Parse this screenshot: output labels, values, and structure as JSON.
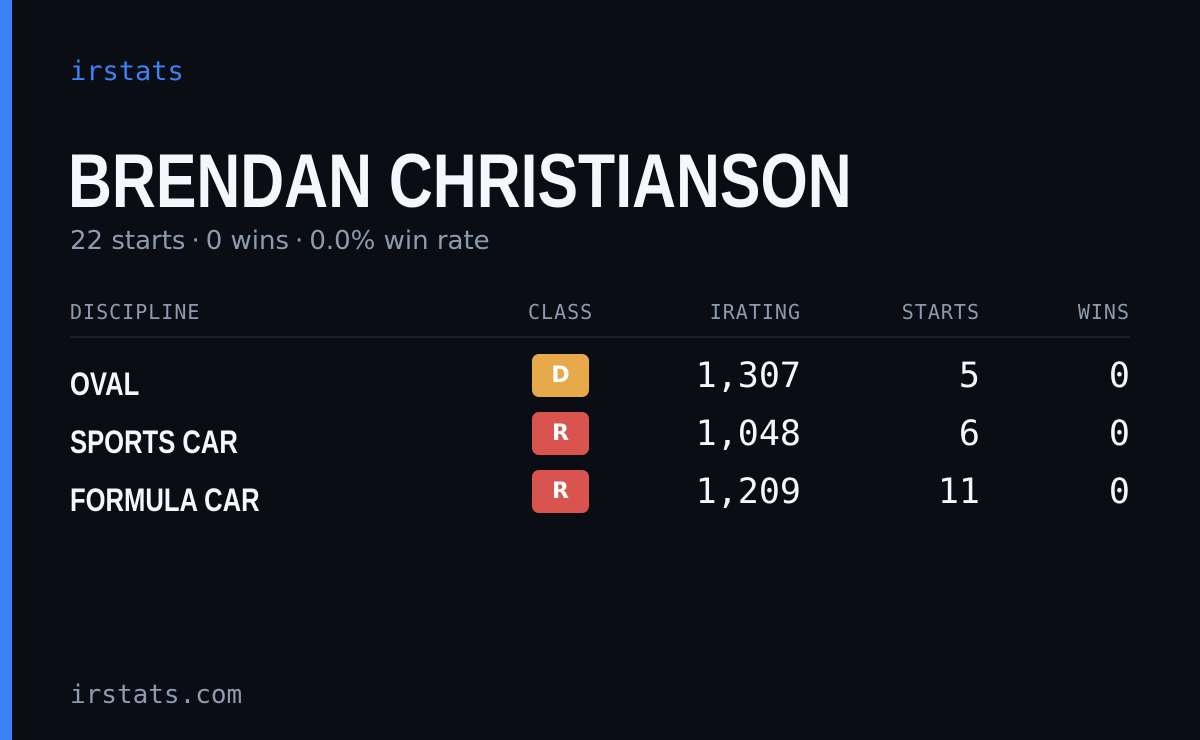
{
  "brand": "irstats",
  "driver": {
    "name": "BRENDAN CHRISTIANSON",
    "starts_text": "22 starts",
    "wins_text": "0 wins",
    "win_rate_text": "0.0% win rate",
    "separator": "·"
  },
  "table": {
    "headers": {
      "discipline": "DISCIPLINE",
      "class": "CLASS",
      "irating": "IRATING",
      "starts": "STARTS",
      "wins": "WINS"
    },
    "rows": [
      {
        "discipline": "OVAL",
        "class": "D",
        "class_color": "#e8a94a",
        "irating": "1,307",
        "starts": "5",
        "wins": "0"
      },
      {
        "discipline": "SPORTS CAR",
        "class": "R",
        "class_color": "#d9534f",
        "irating": "1,048",
        "starts": "6",
        "wins": "0"
      },
      {
        "discipline": "FORMULA CAR",
        "class": "R",
        "class_color": "#d9534f",
        "irating": "1,209",
        "starts": "11",
        "wins": "0"
      }
    ]
  },
  "footer": "irstats.com",
  "colors": {
    "accent": "#3b82f6",
    "background": "#0a0d14",
    "muted": "#8e9aae",
    "text": "#f5f7fa"
  }
}
